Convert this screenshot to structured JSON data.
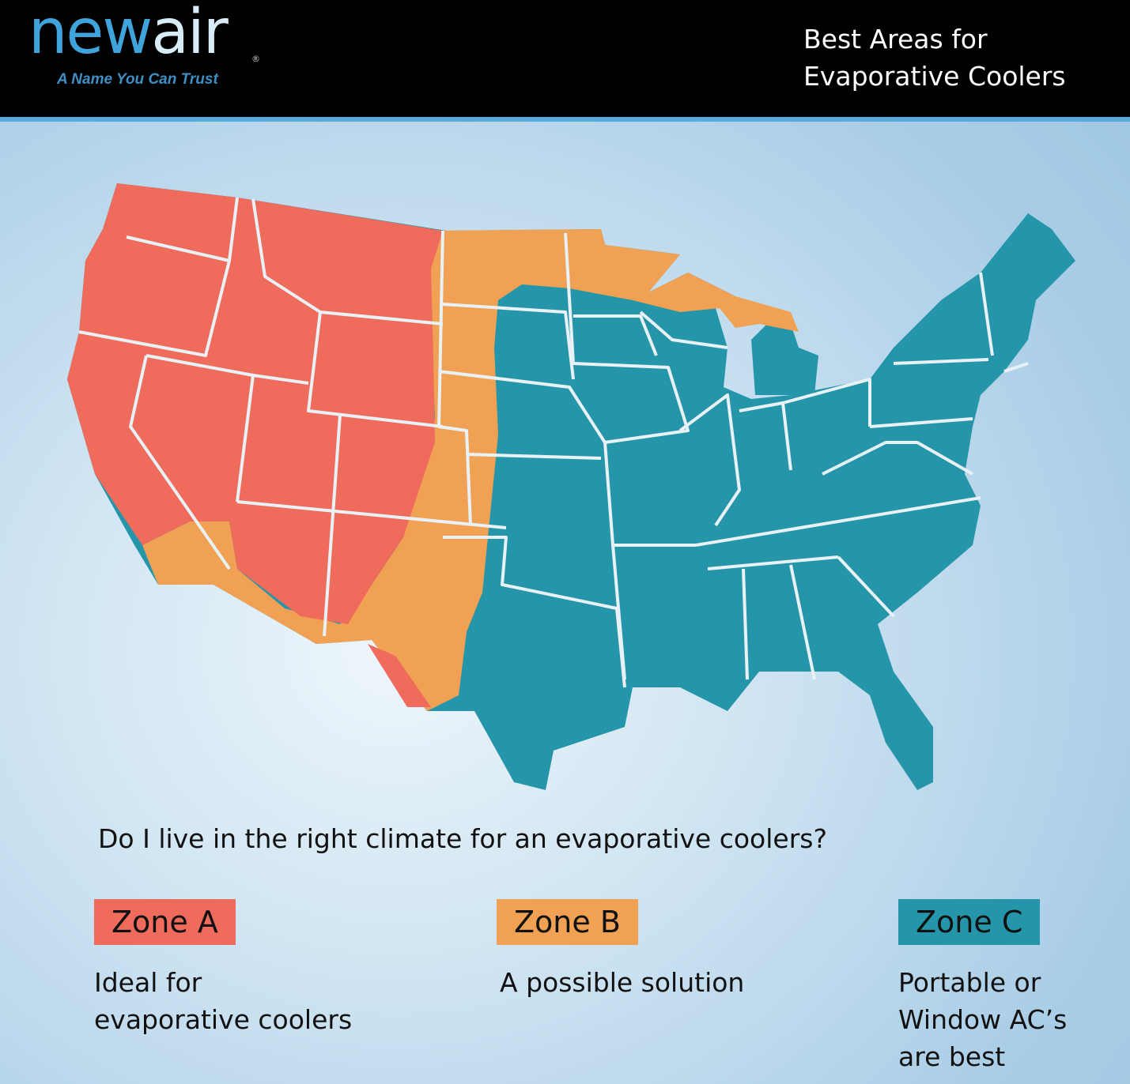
{
  "header": {
    "logo_text_blue": "new",
    "logo_text_light": "air",
    "logo_registered": "®",
    "tagline": "A Name You Can Trust",
    "title_line1": "Best Areas for",
    "title_line2": "Evaporative Coolers"
  },
  "map": {
    "colors": {
      "zone_a": "#ef6b5c",
      "zone_b": "#f0a154",
      "zone_c": "#2596aa",
      "borders": "#e8f1f6"
    }
  },
  "question": "Do I live in the right climate for an evaporative coolers?",
  "zones": [
    {
      "label": "Zone A",
      "color": "#ef6b5c",
      "desc_lines": [
        "Ideal for",
        "evaporative coolers"
      ]
    },
    {
      "label": "Zone B",
      "color": "#f0a154",
      "desc_lines": [
        "A possible solution"
      ]
    },
    {
      "label": "Zone C",
      "color": "#2596aa",
      "desc_lines": [
        "Portable or",
        "Window AC’s",
        "are best"
      ]
    }
  ]
}
